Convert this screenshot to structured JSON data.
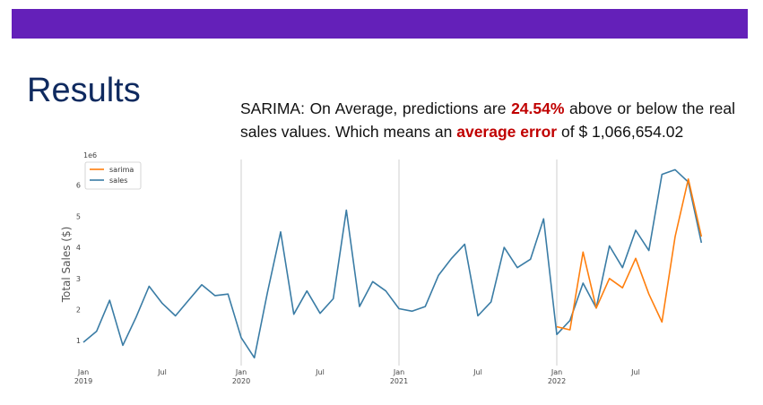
{
  "header": {
    "bar_color": "#6420b9"
  },
  "title": "Results",
  "caption": {
    "part1": "SARIMA: On Average, predictions are ",
    "highlight1": "24.54%",
    "part2": " above or below the real sales values. Which means an ",
    "highlight2": "average error",
    "part3": " of $ 1,066,654.02"
  },
  "chart_data": {
    "type": "line",
    "ylabel": "Total Sales ($)",
    "y_multiplier": "1e6",
    "ylim": [
      0.2,
      7.0
    ],
    "yticks": [
      1,
      2,
      3,
      4,
      5,
      6
    ],
    "x_month_range": [
      0,
      48
    ],
    "xticks": [
      {
        "m": 0,
        "label": "Jan",
        "year": "2019"
      },
      {
        "m": 6,
        "label": "Jul",
        "year": ""
      },
      {
        "m": 12,
        "label": "Jan",
        "year": "2020"
      },
      {
        "m": 18,
        "label": "Jul",
        "year": ""
      },
      {
        "m": 24,
        "label": "Jan",
        "year": "2021"
      },
      {
        "m": 30,
        "label": "Jul",
        "year": ""
      },
      {
        "m": 36,
        "label": "Jan",
        "year": "2022"
      },
      {
        "m": 42,
        "label": "Jul",
        "year": ""
      }
    ],
    "vlines_month": [
      12,
      24,
      36
    ],
    "legend": "top-left",
    "series": [
      {
        "name": "sarima",
        "color": "#ff7f0e",
        "x_month": [
          36,
          37,
          38,
          39,
          40,
          41,
          42,
          43,
          44,
          45,
          46,
          47
        ],
        "values": [
          1.45,
          1.35,
          3.85,
          2.05,
          3.0,
          2.7,
          3.65,
          2.5,
          1.6,
          4.35,
          6.2,
          4.35
        ]
      },
      {
        "name": "sales",
        "color": "#3a7ca5",
        "x_month": [
          0,
          1,
          2,
          3,
          4,
          5,
          6,
          7,
          8,
          9,
          10,
          11,
          12,
          13,
          14,
          15,
          16,
          17,
          18,
          19,
          20,
          21,
          22,
          23,
          24,
          25,
          26,
          27,
          28,
          29,
          30,
          31,
          32,
          33,
          34,
          35,
          36,
          37,
          38,
          39,
          40,
          41,
          42,
          43,
          44,
          45,
          46,
          47
        ],
        "values": [
          0.95,
          1.3,
          2.3,
          0.85,
          1.75,
          2.75,
          2.2,
          1.8,
          2.3,
          2.8,
          2.45,
          2.5,
          1.1,
          0.45,
          2.55,
          4.5,
          1.85,
          2.6,
          1.88,
          2.35,
          5.2,
          2.1,
          2.9,
          2.6,
          2.03,
          1.95,
          2.1,
          3.1,
          3.65,
          4.1,
          1.8,
          2.25,
          4.0,
          3.35,
          3.62,
          4.92,
          1.2,
          1.65,
          2.85,
          2.05,
          4.05,
          3.35,
          4.55,
          3.9,
          6.35,
          6.5,
          6.1,
          4.15
        ]
      }
    ]
  }
}
